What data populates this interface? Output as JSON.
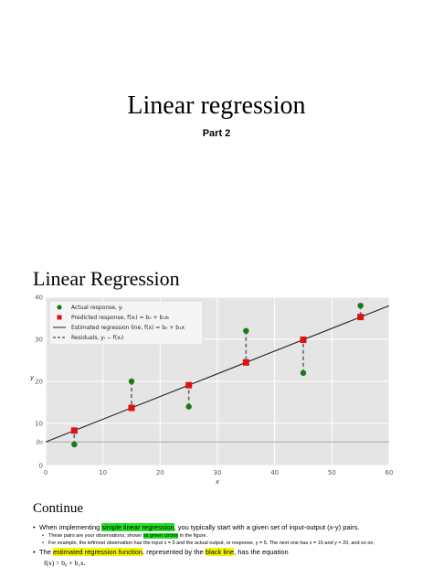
{
  "slide": {
    "title": "Linear regression",
    "subtitle": "Part 2"
  },
  "section": {
    "heading": "Linear Regression",
    "continue_heading": "Continue"
  },
  "bullets": {
    "b1_a": "When implementing ",
    "b1_hl": "simple linear regression",
    "b1_b": ", you typically start with a given set of input-output (x-y) pairs.",
    "b1_sub1_a": "These pairs are your observations, shown ",
    "b1_sub1_hl": "as green circles",
    "b1_sub1_b": " in the figure.",
    "b1_sub2": "For example, the leftmost observation has the input x = 5 and the actual output, or response, y = 5. The next one has x = 15 and y = 20, and so on.",
    "b2_a": "The ",
    "b2_hl1": "estimated regression function",
    "b2_b": ", represented by the ",
    "b2_hl2": "black line",
    "b2_c": ", has the equation",
    "equation": "f(x) = b₀ + b₁x."
  },
  "colors": {
    "actual": "#1a7a1a",
    "predicted": "#e01010",
    "line": "#222222",
    "residual": "#666666",
    "plot_bg": "#e5e5e5"
  },
  "chart_data": {
    "type": "scatter",
    "xlim": [
      0,
      60
    ],
    "ylim": [
      0,
      40
    ],
    "xticks": [
      "0",
      "10",
      "20",
      "30",
      "40",
      "50",
      "60"
    ],
    "yticks": [
      "0",
      "10",
      "20",
      "30",
      "40"
    ],
    "ylabel": "y",
    "xlabel": "x",
    "b0_label": "b₀",
    "b0": 5.6,
    "b1": 0.54,
    "legend_position": "top-left",
    "legend": [
      "Actual response, yᵢ",
      "Predicted response, f(xᵢ) = b₀ + b₁xᵢ",
      "Estimated regression line, f(x) = b₀ + b₁x",
      "Residuals, yᵢ − f(xᵢ)"
    ],
    "actual": {
      "x": [
        5,
        15,
        25,
        35,
        45,
        55
      ],
      "y": [
        5,
        20,
        14,
        32,
        22,
        38
      ]
    },
    "predicted": {
      "x": [
        5,
        15,
        25,
        35,
        45,
        55
      ],
      "y": [
        8.3,
        13.7,
        19.1,
        24.5,
        29.9,
        35.3
      ]
    },
    "line": {
      "x": [
        0,
        60
      ],
      "y": [
        5.6,
        38
      ]
    },
    "grid": true
  }
}
